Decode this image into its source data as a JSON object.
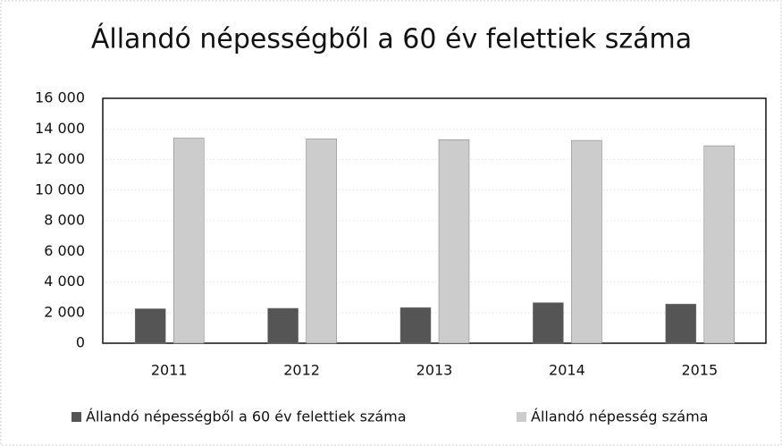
{
  "chart_data": {
    "type": "bar",
    "title": "Állandó népességből a 60 év felettiek száma",
    "categories": [
      "2011",
      "2012",
      "2013",
      "2014",
      "2015"
    ],
    "series": [
      {
        "name": "Állandó népességből a 60 év felettiek száma",
        "color": "#555555",
        "values": [
          2250,
          2280,
          2330,
          2650,
          2560
        ]
      },
      {
        "name": "Állandó népesség száma",
        "color": "#cccccc",
        "values": [
          13400,
          13350,
          13300,
          13250,
          12900
        ]
      }
    ],
    "ylim": [
      0,
      16000
    ],
    "yticks": [
      0,
      {
        "value": 2000,
        "label": "2 000"
      },
      {
        "value": 4000,
        "label": "4 000"
      },
      {
        "value": 6000,
        "label": "6 000"
      },
      {
        "value": 8000,
        "label": "8 000"
      },
      {
        "value": 10000,
        "label": "10 000"
      },
      {
        "value": 12000,
        "label": "12 000"
      },
      {
        "value": 14000,
        "label": "14 000"
      },
      {
        "value": 16000,
        "label": "16 000"
      }
    ],
    "grid": true
  }
}
